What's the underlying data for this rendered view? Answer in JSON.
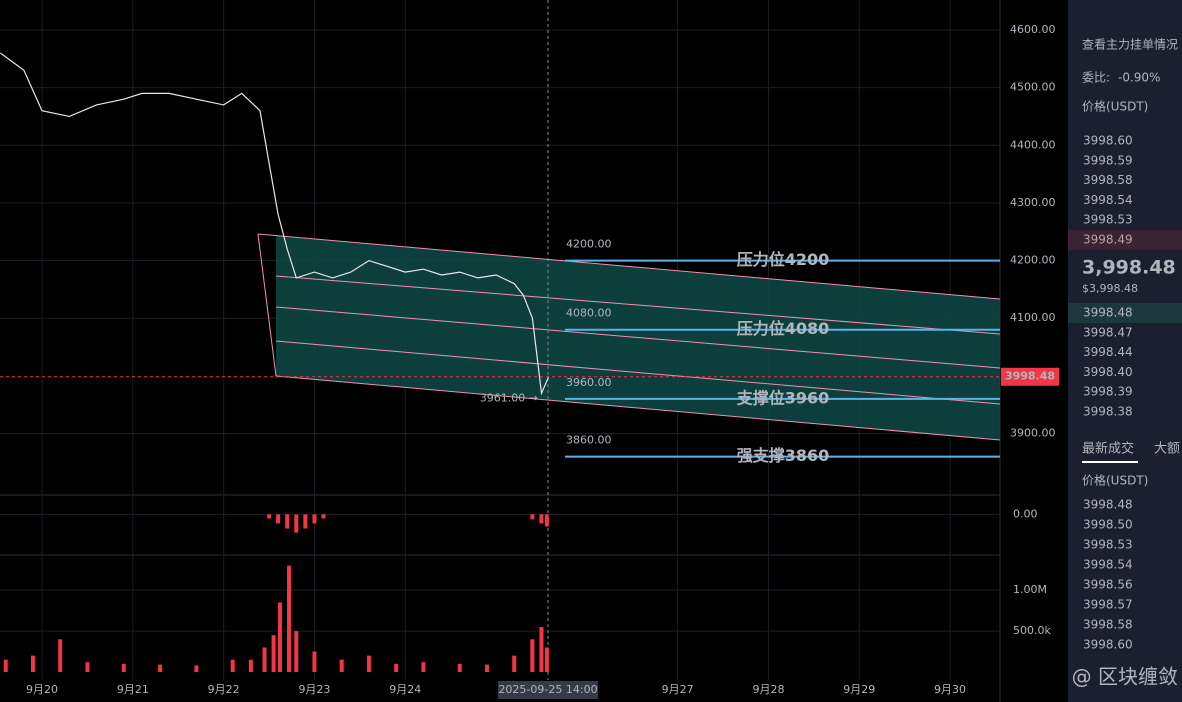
{
  "chart_data": [
    {
      "type": "line",
      "xlim": [
        19.537,
        30.55
      ],
      "ylim": [
        3802,
        4652
      ],
      "xticks": [
        {
          "value": 20,
          "label": "9月20"
        },
        {
          "value": 21,
          "label": "9月21"
        },
        {
          "value": 22,
          "label": "9月22"
        },
        {
          "value": 23,
          "label": "9月23"
        },
        {
          "value": 24,
          "label": "9月24"
        },
        {
          "value": 27,
          "label": "9月27"
        },
        {
          "value": 28,
          "label": "9月28"
        },
        {
          "value": 29,
          "label": "9月29"
        },
        {
          "value": 30,
          "label": "9月30"
        }
      ],
      "yticks": [
        {
          "value": 3900,
          "label": "3900.00"
        },
        {
          "value": 4100,
          "label": "4100.00"
        },
        {
          "value": 4200,
          "label": "4200.00"
        },
        {
          "value": 4300,
          "label": "4300.00"
        },
        {
          "value": 4400,
          "label": "4400.00"
        },
        {
          "value": 4500,
          "label": "4500.00"
        },
        {
          "value": 4600,
          "label": "4600.00"
        }
      ],
      "crosshair_label": "2025-09-25 14:00",
      "series": [
        {
          "color": "#e8e8e8",
          "x": [
            19.54,
            19.8,
            20.0,
            20.3,
            20.6,
            20.9,
            21.1,
            21.4,
            21.7,
            22.0,
            22.2,
            22.4,
            22.5,
            22.6,
            22.7,
            22.8,
            23.0,
            23.2,
            23.4,
            23.6,
            23.8,
            24.0,
            24.2,
            24.4,
            24.6,
            24.8,
            25.0,
            25.2,
            25.3,
            25.4,
            25.5,
            25.58
          ],
          "values": [
            4560,
            4530,
            4460,
            4450,
            4470,
            4480,
            4490,
            4490,
            4480,
            4470,
            4490,
            4460,
            4370,
            4280,
            4220,
            4170,
            4180,
            4170,
            4180,
            4200,
            4190,
            4180,
            4185,
            4175,
            4180,
            4170,
            4175,
            4160,
            4140,
            4100,
            3970,
            3998.48
          ]
        }
      ],
      "current_price": 3998.48,
      "current_price_color": "#f23645",
      "low_mark": {
        "value": 3961,
        "label": "3961.00 →"
      },
      "levels": [
        {
          "value": 4200,
          "label": "4200.00",
          "note": "压力位4200",
          "color": "#b47ee5"
        },
        {
          "value": 4080,
          "label": "4080.00",
          "note": "压力位4080",
          "color": "#e8e84f"
        },
        {
          "value": 3960,
          "label": "3960.00",
          "note": "支撑位3960",
          "color": "#e8e84f"
        },
        {
          "value": 3860,
          "label": "3860.00",
          "note": "强支撑3860",
          "color": "#7ed957"
        }
      ]
    },
    {
      "type": "bar",
      "ylim": [
        -40,
        19
      ],
      "yticks": [
        {
          "value": 0,
          "label": "0.00"
        }
      ],
      "color": "#f23645",
      "x": [
        22.5,
        22.6,
        22.7,
        22.8,
        22.9,
        23.0,
        23.1,
        25.4,
        25.5,
        25.56
      ],
      "values": [
        -4,
        -9,
        -14,
        -18,
        -14,
        -9,
        -4,
        -5,
        -9,
        -12
      ]
    },
    {
      "type": "bar",
      "ylim": [
        0,
        1430000
      ],
      "color": "#f23645",
      "yticks": [
        {
          "value": 500000,
          "label": "500.0k"
        },
        {
          "value": 1000000,
          "label": "1.00M"
        }
      ],
      "x": [
        19.6,
        19.9,
        20.2,
        20.5,
        20.9,
        21.3,
        21.7,
        22.1,
        22.3,
        22.45,
        22.55,
        22.62,
        22.72,
        22.8,
        23.0,
        23.3,
        23.6,
        23.9,
        24.2,
        24.6,
        24.9,
        25.2,
        25.4,
        25.5,
        25.56
      ],
      "values": [
        150000,
        200000,
        400000,
        120000,
        100000,
        90000,
        80000,
        150000,
        150000,
        300000,
        450000,
        850000,
        1300000,
        500000,
        250000,
        150000,
        200000,
        100000,
        120000,
        100000,
        90000,
        200000,
        400000,
        550000,
        300000
      ]
    }
  ],
  "panel": {
    "title": "查看主力挂单情况",
    "ratio_label": "委比:",
    "ratio_value": "-0.90%",
    "price_header": "价格(USDT)",
    "asks": [
      "3998.60",
      "3998.59",
      "3998.58",
      "3998.54",
      "3998.53",
      "3998.49"
    ],
    "last_price": "3,998.48",
    "last_price_usd": "$3,998.48",
    "bids": [
      "3998.48",
      "3998.47",
      "3998.44",
      "3998.40",
      "3998.39",
      "3998.38"
    ],
    "tabs": [
      "最新成交",
      "大额"
    ],
    "trades_header": "价格(USDT)",
    "trades": [
      "3998.48",
      "3998.50",
      "3998.53",
      "3998.54",
      "3998.56",
      "3998.57",
      "3998.58",
      "3998.60"
    ]
  },
  "watermark": "@ 区块缠敛"
}
